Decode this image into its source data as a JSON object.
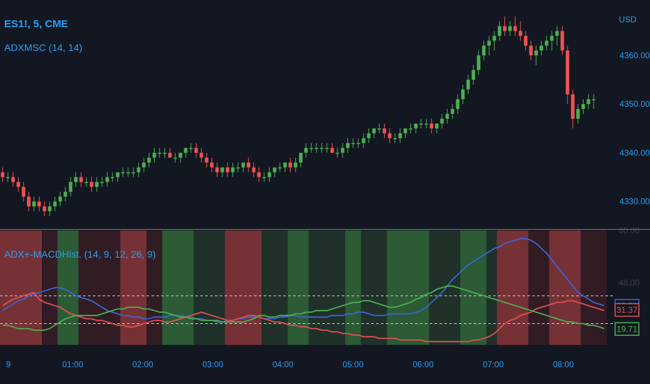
{
  "chart_data": [
    {
      "type": "candlestick",
      "title": "ES1!, 5, CME",
      "indicator": "ADXMSC (14, 14)",
      "currency": "USD",
      "y_ticks": [
        "4360.00",
        "4350.00",
        "4340.00",
        "4330.00"
      ],
      "ylim": [
        4325.5,
        4368.5
      ],
      "colors": {
        "up": "#4caf50",
        "down": "#ef5350"
      },
      "candles": [
        [
          4336,
          4337,
          4334,
          4335
        ],
        [
          4335,
          4336,
          4334,
          4335
        ],
        [
          4335,
          4336,
          4333,
          4334
        ],
        [
          4334,
          4335,
          4332,
          4333
        ],
        [
          4333,
          4334,
          4330,
          4331
        ],
        [
          4331,
          4332,
          4328,
          4329
        ],
        [
          4329,
          4331,
          4328,
          4330
        ],
        [
          4330,
          4331,
          4328,
          4329
        ],
        [
          4329,
          4330,
          4327,
          4328
        ],
        [
          4328,
          4330,
          4327,
          4329
        ],
        [
          4329,
          4331,
          4328,
          4330
        ],
        [
          4330,
          4332,
          4329,
          4331
        ],
        [
          4331,
          4333,
          4330,
          4332
        ],
        [
          4332,
          4335,
          4331,
          4334
        ],
        [
          4334,
          4336,
          4333,
          4335
        ],
        [
          4335,
          4336,
          4333,
          4334
        ],
        [
          4334,
          4335,
          4333,
          4334
        ],
        [
          4334,
          4335,
          4332,
          4333
        ],
        [
          4333,
          4335,
          4332,
          4334
        ],
        [
          4334,
          4335,
          4333,
          4334
        ],
        [
          4334,
          4336,
          4333,
          4335
        ],
        [
          4335,
          4336,
          4334,
          4335
        ],
        [
          4335,
          4336,
          4334,
          4336
        ],
        [
          4336,
          4337,
          4335,
          4336
        ],
        [
          4336,
          4337,
          4335,
          4336
        ],
        [
          4336,
          4337,
          4335,
          4336
        ],
        [
          4336,
          4338,
          4335,
          4337
        ],
        [
          4337,
          4339,
          4336,
          4338
        ],
        [
          4338,
          4340,
          4337,
          4339
        ],
        [
          4339,
          4341,
          4338,
          4340
        ],
        [
          4340,
          4341,
          4339,
          4340
        ],
        [
          4340,
          4341,
          4339,
          4340
        ],
        [
          4340,
          4341,
          4339,
          4339
        ],
        [
          4339,
          4340,
          4338,
          4339
        ],
        [
          4339,
          4340,
          4338,
          4340
        ],
        [
          4340,
          4341,
          4339,
          4341
        ],
        [
          4341,
          4342,
          4340,
          4341
        ],
        [
          4341,
          4342,
          4339,
          4340
        ],
        [
          4340,
          4341,
          4338,
          4339
        ],
        [
          4339,
          4340,
          4337,
          4338
        ],
        [
          4338,
          4339,
          4336,
          4337
        ],
        [
          4337,
          4338,
          4335,
          4336
        ],
        [
          4336,
          4337,
          4335,
          4337
        ],
        [
          4337,
          4338,
          4335,
          4336
        ],
        [
          4336,
          4338,
          4335,
          4337
        ],
        [
          4337,
          4338,
          4336,
          4337
        ],
        [
          4337,
          4338,
          4336,
          4338
        ],
        [
          4338,
          4339,
          4336,
          4337
        ],
        [
          4337,
          4338,
          4335,
          4336
        ],
        [
          4336,
          4337,
          4334,
          4335
        ],
        [
          4335,
          4336,
          4334,
          4335
        ],
        [
          4335,
          4337,
          4334,
          4336
        ],
        [
          4336,
          4337,
          4335,
          4337
        ],
        [
          4337,
          4338,
          4336,
          4337
        ],
        [
          4337,
          4338,
          4336,
          4338
        ],
        [
          4338,
          4339,
          4336,
          4337
        ],
        [
          4337,
          4339,
          4336,
          4338
        ],
        [
          4338,
          4340,
          4337,
          4340
        ],
        [
          4340,
          4342,
          4339,
          4341
        ],
        [
          4341,
          4342,
          4340,
          4341
        ],
        [
          4341,
          4342,
          4340,
          4341
        ],
        [
          4341,
          4342,
          4340,
          4341
        ],
        [
          4341,
          4342,
          4340,
          4341
        ],
        [
          4341,
          4342,
          4340,
          4340
        ],
        [
          4340,
          4341,
          4339,
          4340
        ],
        [
          4340,
          4342,
          4339,
          4341
        ],
        [
          4341,
          4343,
          4340,
          4342
        ],
        [
          4342,
          4343,
          4341,
          4342
        ],
        [
          4342,
          4343,
          4341,
          4342
        ],
        [
          4342,
          4344,
          4341,
          4343
        ],
        [
          4343,
          4345,
          4342,
          4344
        ],
        [
          4344,
          4345,
          4343,
          4345
        ],
        [
          4345,
          4346,
          4344,
          4345
        ],
        [
          4345,
          4346,
          4343,
          4344
        ],
        [
          4344,
          4345,
          4342,
          4343
        ],
        [
          4343,
          4344,
          4342,
          4343
        ],
        [
          4343,
          4345,
          4342,
          4344
        ],
        [
          4344,
          4345,
          4343,
          4345
        ],
        [
          4345,
          4346,
          4344,
          4345
        ],
        [
          4345,
          4346,
          4344,
          4346
        ],
        [
          4346,
          4347,
          4345,
          4346
        ],
        [
          4346,
          4347,
          4345,
          4346
        ],
        [
          4346,
          4347,
          4344,
          4345
        ],
        [
          4345,
          4346,
          4344,
          4346
        ],
        [
          4346,
          4348,
          4345,
          4347
        ],
        [
          4347,
          4349,
          4346,
          4348
        ],
        [
          4348,
          4350,
          4347,
          4349
        ],
        [
          4349,
          4352,
          4348,
          4351
        ],
        [
          4351,
          4354,
          4350,
          4353
        ],
        [
          4353,
          4356,
          4352,
          4355
        ],
        [
          4355,
          4358,
          4354,
          4357
        ],
        [
          4357,
          4361,
          4356,
          4360
        ],
        [
          4360,
          4363,
          4359,
          4362
        ],
        [
          4362,
          4364,
          4360,
          4363
        ],
        [
          4363,
          4365,
          4361,
          4364
        ],
        [
          4364,
          4367,
          4363,
          4366
        ],
        [
          4366,
          4368,
          4364,
          4365
        ],
        [
          4365,
          4367,
          4364,
          4366
        ],
        [
          4366,
          4368,
          4364,
          4365
        ],
        [
          4365,
          4367,
          4363,
          4364
        ],
        [
          4364,
          4365,
          4361,
          4362
        ],
        [
          4362,
          4363,
          4359,
          4360
        ],
        [
          4360,
          4362,
          4358,
          4361
        ],
        [
          4361,
          4363,
          4360,
          4362
        ],
        [
          4362,
          4364,
          4361,
          4363
        ],
        [
          4363,
          4365,
          4361,
          4364
        ],
        [
          4364,
          4366,
          4362,
          4365
        ],
        [
          4365,
          4366,
          4360,
          4361
        ],
        [
          4361,
          4362,
          4350,
          4352
        ],
        [
          4352,
          4353,
          4345,
          4347
        ],
        [
          4347,
          4350,
          4346,
          4349
        ],
        [
          4349,
          4351,
          4348,
          4350
        ],
        [
          4350,
          4352,
          4349,
          4351
        ],
        [
          4351,
          4352,
          4349,
          4351
        ]
      ]
    },
    {
      "type": "line",
      "title": "ADX+-MACDHist. (14, 9, 12, 26, 9)",
      "y_ticks": [
        "80.00",
        "48.00"
      ],
      "ylim": [
        10,
        80
      ],
      "reference_lines": [
        40,
        23
      ],
      "last_values": [
        {
          "value": "33.90",
          "color": "#3a64d8"
        },
        {
          "value": "31.37",
          "color": "#e05050"
        },
        {
          "value": "19.71",
          "color": "#4caf50"
        }
      ],
      "series": [
        {
          "color": "#3a64d8",
          "values": [
            31,
            33,
            35,
            37,
            38,
            40,
            41,
            42,
            43,
            44,
            45,
            45,
            44,
            42,
            40,
            39,
            38,
            37,
            35,
            33,
            31,
            30,
            29,
            28,
            28,
            27,
            27,
            26,
            26,
            27,
            27,
            27,
            28,
            28,
            28,
            27,
            27,
            26,
            26,
            25,
            25,
            24,
            24,
            25,
            25,
            26,
            26,
            27,
            27,
            27,
            26,
            26,
            26,
            27,
            27,
            28,
            28,
            27,
            27,
            27,
            27,
            27,
            27,
            28,
            28,
            28,
            29,
            29,
            30,
            30,
            29,
            28,
            28,
            28,
            29,
            29,
            29,
            29,
            29,
            30,
            31,
            33,
            36,
            39,
            42,
            46,
            50,
            53,
            56,
            59,
            61,
            63,
            65,
            67,
            69,
            70,
            72,
            73,
            74,
            75,
            75,
            74,
            72,
            69,
            66,
            62,
            58,
            54,
            50,
            46,
            42,
            40,
            38,
            36,
            35,
            34
          ]
        },
        {
          "color": "#e05050",
          "values": [
            34,
            36,
            38,
            39,
            40,
            41,
            42,
            38,
            36,
            35,
            34,
            33,
            31,
            29,
            28,
            27,
            26,
            26,
            25,
            25,
            24,
            23,
            22,
            22,
            21,
            21,
            22,
            23,
            24,
            25,
            25,
            24,
            24,
            25,
            26,
            27,
            28,
            29,
            30,
            29,
            28,
            27,
            26,
            25,
            25,
            26,
            27,
            28,
            28,
            27,
            26,
            25,
            24,
            24,
            23,
            22,
            22,
            21,
            21,
            20,
            20,
            19,
            19,
            18,
            18,
            17,
            17,
            16,
            16,
            15,
            15,
            15,
            14,
            14,
            14,
            14,
            13,
            13,
            13,
            13,
            13,
            12,
            12,
            12,
            12,
            12,
            12,
            12,
            12,
            12,
            13,
            13,
            14,
            15,
            17,
            20,
            23,
            25,
            26,
            28,
            29,
            30,
            32,
            33,
            34,
            35,
            36,
            36,
            37,
            37,
            36,
            35,
            34,
            33,
            32,
            31
          ]
        },
        {
          "color": "#4caf50",
          "values": [
            22,
            22,
            21,
            20,
            20,
            20,
            19,
            19,
            19,
            20,
            22,
            24,
            26,
            27,
            28,
            28,
            28,
            28,
            28,
            29,
            30,
            31,
            32,
            32,
            33,
            33,
            33,
            32,
            32,
            31,
            30,
            30,
            29,
            28,
            27,
            27,
            26,
            26,
            25,
            25,
            25,
            25,
            24,
            24,
            24,
            24,
            24,
            25,
            26,
            28,
            28,
            27,
            27,
            28,
            28,
            28,
            29,
            29,
            30,
            30,
            31,
            31,
            31,
            32,
            33,
            34,
            35,
            36,
            36,
            37,
            37,
            36,
            35,
            34,
            33,
            33,
            34,
            35,
            36,
            38,
            39,
            41,
            42,
            44,
            45,
            46,
            46,
            45,
            44,
            43,
            42,
            41,
            40,
            39,
            38,
            37,
            36,
            35,
            34,
            33,
            32,
            31,
            30,
            29,
            28,
            27,
            26,
            25,
            24,
            24,
            23,
            23,
            22,
            22,
            21,
            20
          ]
        }
      ]
    }
  ],
  "time_axis": {
    "labels": [
      {
        "text": "9",
        "slot": 0
      },
      {
        "text": "01:00",
        "slot": 10
      },
      {
        "text": "02:00",
        "slot": 20
      },
      {
        "text": "03:00",
        "slot": 30
      },
      {
        "text": "04:00",
        "slot": 40
      },
      {
        "text": "05:00",
        "slot": 50
      },
      {
        "text": "06:00",
        "slot": 60
      },
      {
        "text": "07:00",
        "slot": 70
      },
      {
        "text": "08:00",
        "slot": 80
      }
    ]
  },
  "regime_bands": [
    {
      "state": "down",
      "n": 8
    },
    {
      "state": "neutral",
      "n": 3
    },
    {
      "state": "up",
      "n": 4
    },
    {
      "state": "neutral",
      "n": 8
    },
    {
      "state": "down",
      "n": 5
    },
    {
      "state": "neutral",
      "n": 3
    },
    {
      "state": "up",
      "n": 6
    },
    {
      "state": "neutral",
      "n": 6
    },
    {
      "state": "down",
      "n": 4
    },
    {
      "state": "down",
      "n": 3
    },
    {
      "state": "neutral",
      "n": 5
    },
    {
      "state": "up",
      "n": 4
    },
    {
      "state": "neutral",
      "n": 7
    },
    {
      "state": "up",
      "n": 3
    },
    {
      "state": "neutral",
      "n": 5
    },
    {
      "state": "up",
      "n": 8
    },
    {
      "state": "neutral",
      "n": 6
    },
    {
      "state": "up",
      "n": 5
    },
    {
      "state": "neutral",
      "n": 2
    },
    {
      "state": "down",
      "n": 6
    },
    {
      "state": "neutral",
      "n": 4
    },
    {
      "state": "down",
      "n": 6
    },
    {
      "state": "neutral",
      "n": 5
    }
  ]
}
